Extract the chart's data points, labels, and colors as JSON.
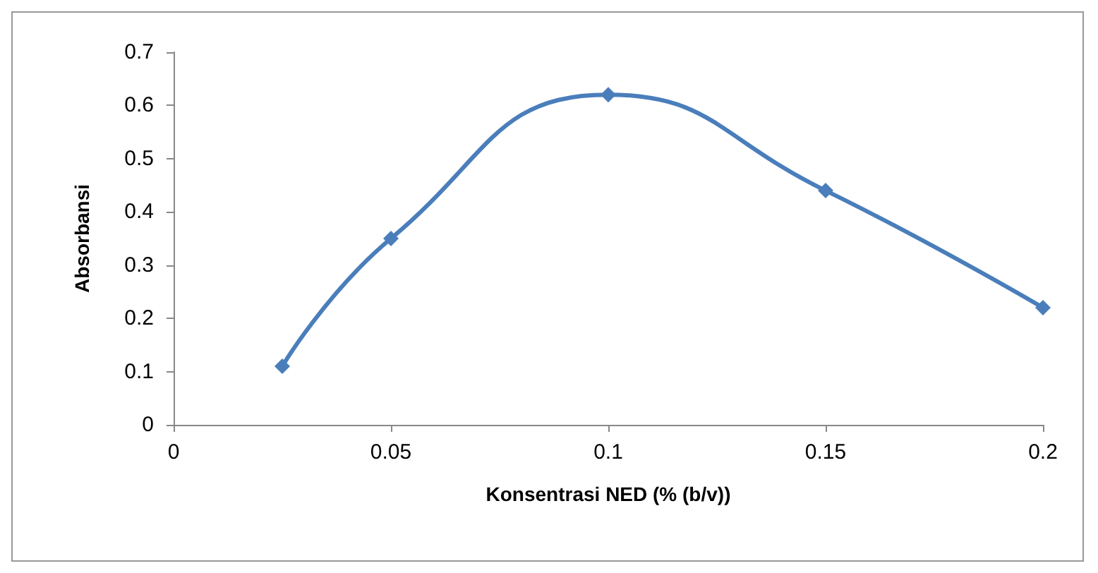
{
  "chart_data": {
    "type": "line",
    "xlabel": "Konsentrasi NED (% (b/v))",
    "ylabel": "Absorbansi",
    "x": [
      0.025,
      0.05,
      0.1,
      0.15,
      0.2
    ],
    "series": [
      {
        "color": "#4a7ebb",
        "values": [
          0.11,
          0.35,
          0.62,
          0.44,
          0.22
        ]
      }
    ],
    "xlim": [
      0,
      0.2
    ],
    "xticks": [
      0,
      0.05,
      0.1,
      0.15,
      0.2
    ],
    "ylim": [
      0,
      0.7
    ],
    "yticks": [
      0,
      0.1,
      0.2,
      0.3,
      0.4,
      0.5,
      0.6,
      0.7
    ],
    "grid": false,
    "marker": "diamond",
    "line_style": "solid"
  }
}
